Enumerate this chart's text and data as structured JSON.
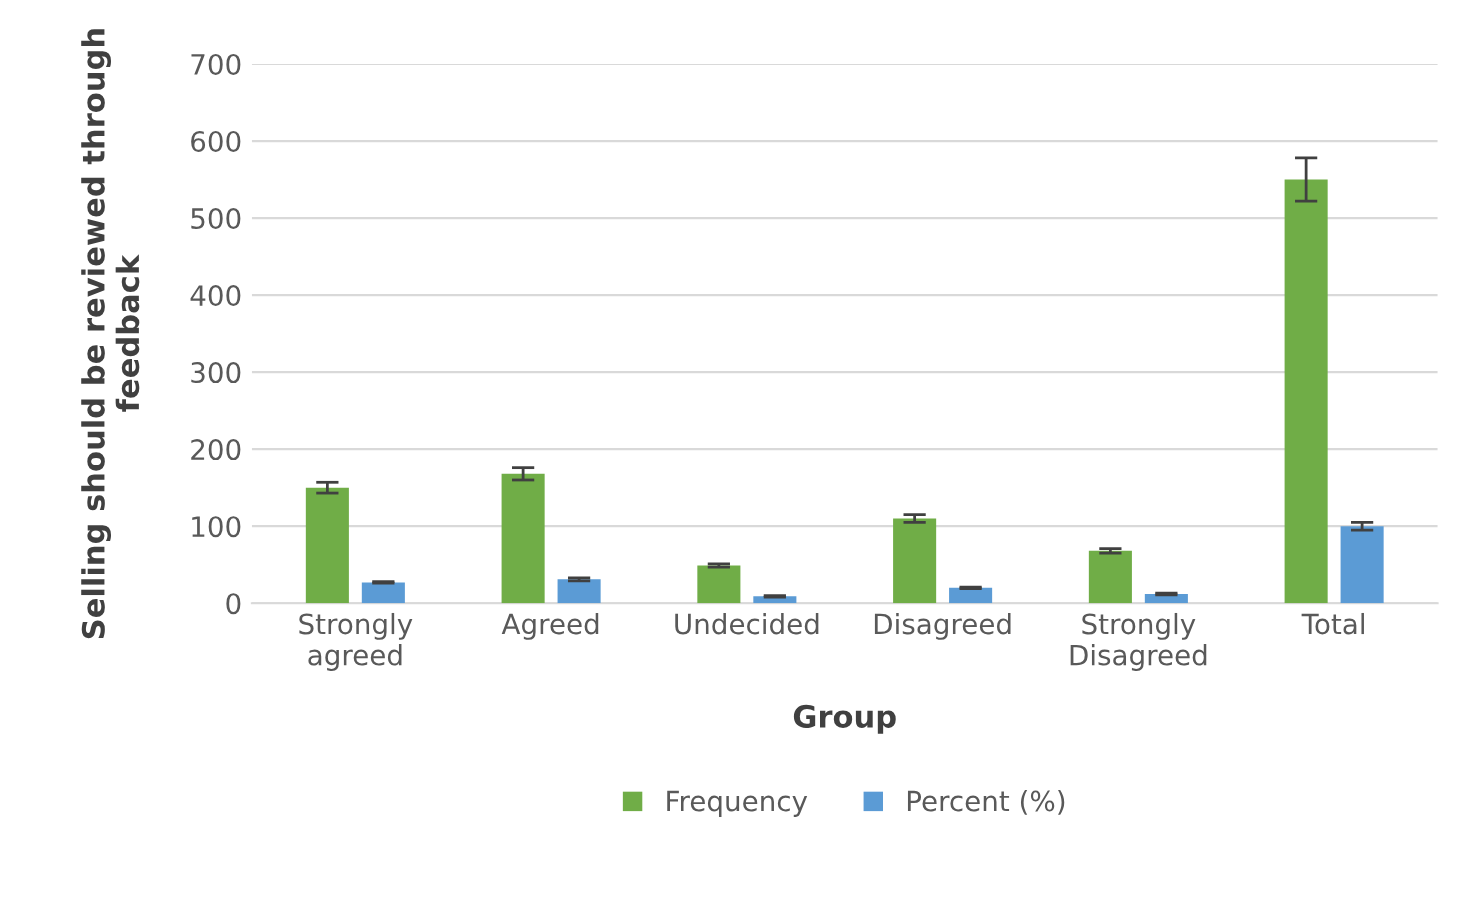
{
  "chart_data": {
    "type": "bar",
    "ylabel": "Selling should be reviewed through feedback",
    "xlabel": "Group",
    "categories": [
      "Strongly\nagreed",
      "Agreed",
      "Undecided",
      "Disagreed",
      "Strongly\nDisagreed",
      "Total"
    ],
    "series": [
      {
        "name": "Frequency",
        "color": "#70ad47",
        "values": [
          150,
          168,
          49,
          110,
          68,
          550
        ],
        "errors": [
          7,
          8,
          2,
          5,
          3,
          28
        ]
      },
      {
        "name": "Percent (%)",
        "color": "#5b9bd5",
        "values": [
          27,
          31,
          9,
          20,
          12,
          100
        ],
        "errors": [
          1,
          2,
          1,
          1,
          1,
          5
        ]
      }
    ],
    "ylim": [
      0,
      700
    ],
    "yticks": [
      0,
      100,
      200,
      300,
      400,
      500,
      600,
      700
    ],
    "grid": "y",
    "legend": "bottom"
  }
}
